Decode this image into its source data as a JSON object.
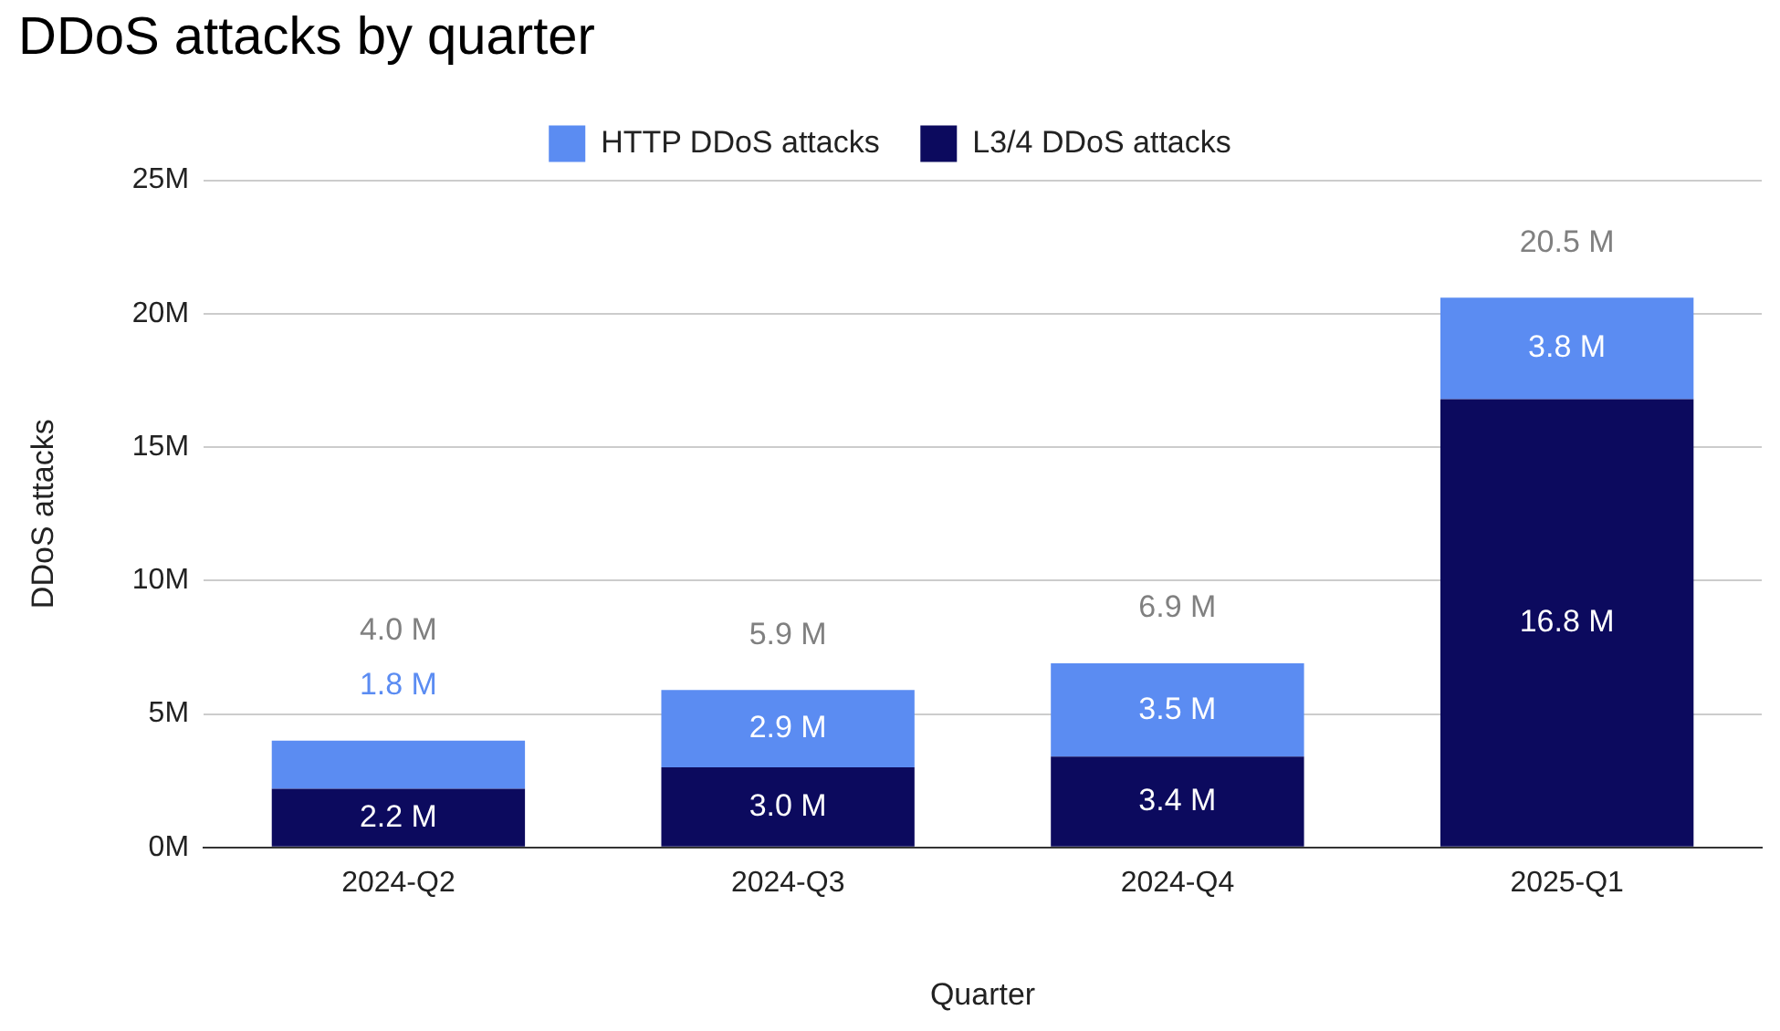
{
  "chart_data": {
    "type": "bar",
    "title": "DDoS attacks by quarter",
    "xlabel": "Quarter",
    "ylabel": "DDoS attacks",
    "categories": [
      "2024-Q2",
      "2024-Q3",
      "2024-Q4",
      "2025-Q1"
    ],
    "series": [
      {
        "name": "L3/4 DDoS attacks",
        "color": "#0c0a5e",
        "values": [
          2.2,
          3.0,
          3.4,
          16.8
        ],
        "value_labels": [
          "2.2 M",
          "3.0 M",
          "3.4 M",
          "16.8 M"
        ]
      },
      {
        "name": "HTTP DDoS attacks",
        "color": "#5b8cf2",
        "values": [
          1.8,
          2.9,
          3.5,
          3.8
        ],
        "value_labels": [
          "1.8 M",
          "2.9 M",
          "3.5 M",
          "3.8 M"
        ]
      }
    ],
    "stacked": true,
    "totals": [
      "4.0 M",
      "5.9 M",
      "6.9 M",
      "20.5 M"
    ],
    "ylim": [
      0,
      25
    ],
    "yticks": [
      {
        "value": 0,
        "label": "0M"
      },
      {
        "value": 5,
        "label": "5M"
      },
      {
        "value": 10,
        "label": "10M"
      },
      {
        "value": 15,
        "label": "15M"
      },
      {
        "value": 20,
        "label": "20M"
      },
      {
        "value": 25,
        "label": "25M"
      }
    ],
    "grid": "y",
    "legend": "top"
  }
}
